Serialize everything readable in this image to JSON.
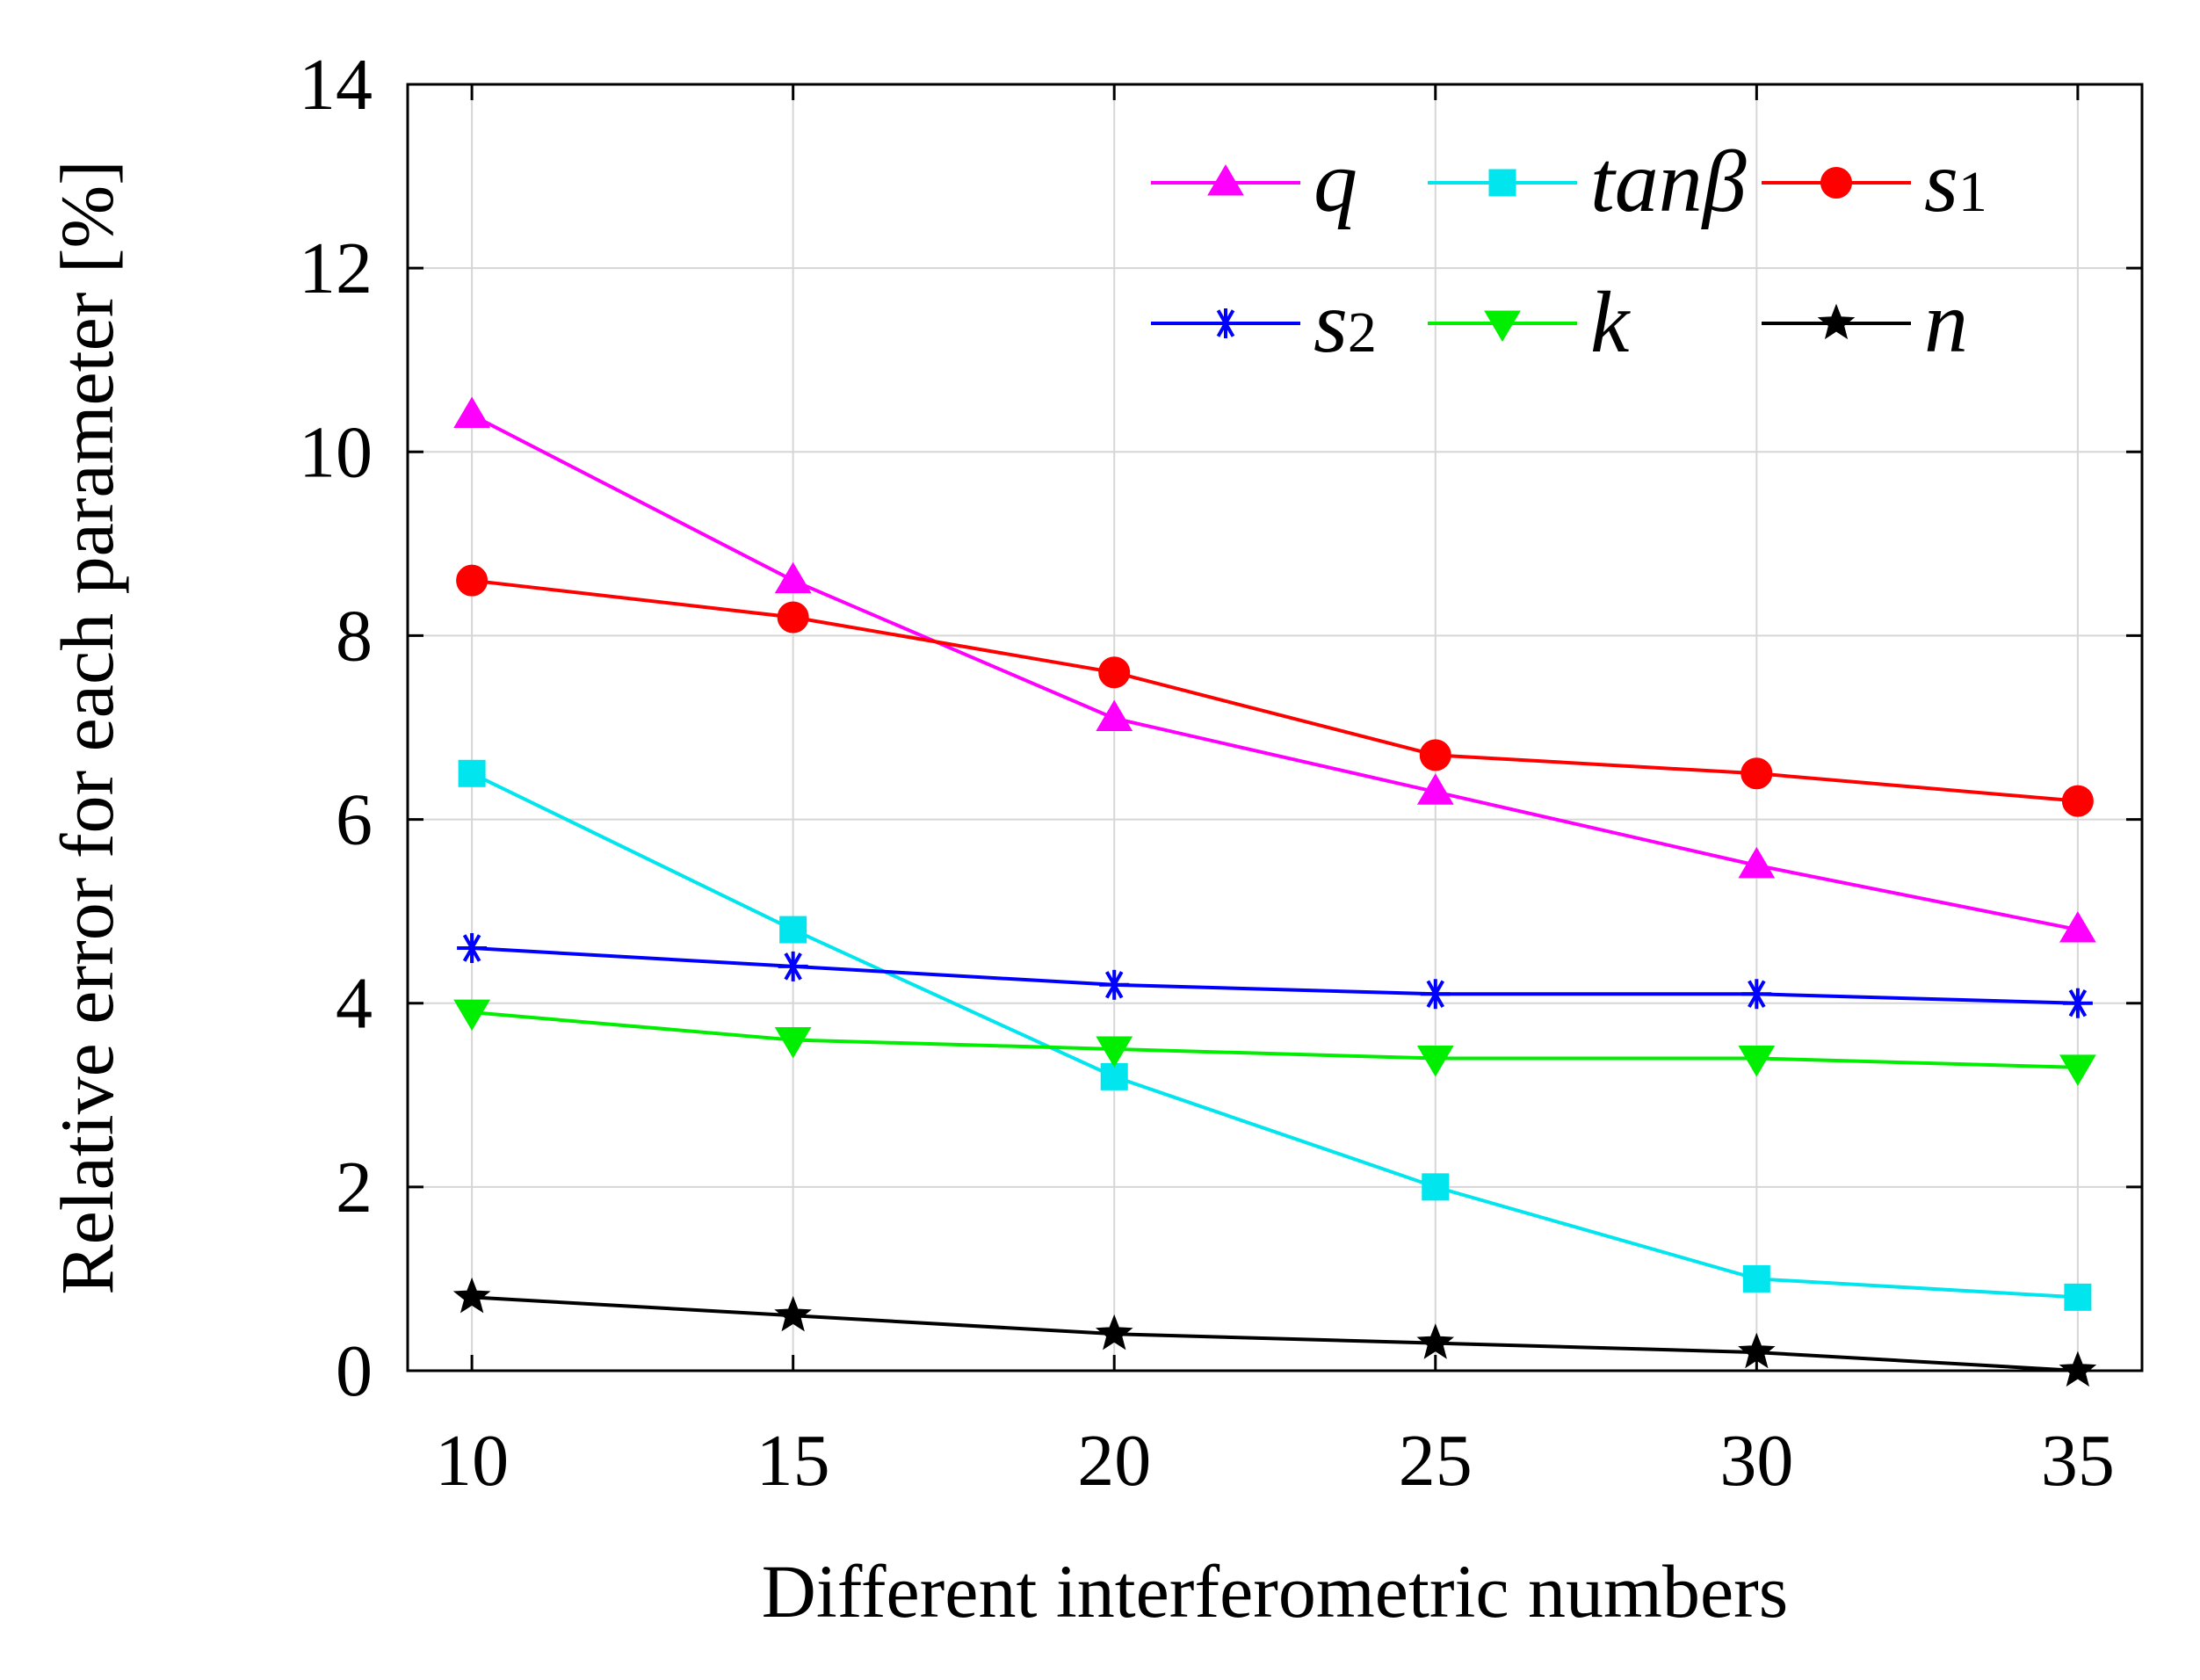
{
  "chart_data": {
    "type": "line",
    "title": "",
    "xlabel": "Different interferometric numbers",
    "ylabel": "Relative error for each parameter [%]",
    "x": [
      10,
      15,
      20,
      25,
      30,
      35
    ],
    "xticks": [
      "10",
      "15",
      "20",
      "25",
      "30",
      "35"
    ],
    "xlim": [
      9,
      36
    ],
    "yticks": [
      "0",
      "2",
      "4",
      "6",
      "8",
      "10",
      "12",
      "14"
    ],
    "ylim": [
      0,
      14
    ],
    "grid": true,
    "legend_position": "top-right",
    "series": [
      {
        "name": "q",
        "label_main": "q",
        "label_sub": "",
        "color": "#ff00ff",
        "marker": "triangle-up",
        "values": [
          10.4,
          8.6,
          7.1,
          6.3,
          5.5,
          4.8
        ]
      },
      {
        "name": "tanβ",
        "label_main": "tanβ",
        "label_sub": "",
        "color": "#00e5ee",
        "marker": "square",
        "values": [
          6.5,
          4.8,
          3.2,
          2.0,
          1.0,
          0.8
        ]
      },
      {
        "name": "s1",
        "label_main": "s",
        "label_sub": "1",
        "color": "#ff0000",
        "marker": "circle",
        "values": [
          8.6,
          8.2,
          7.6,
          6.7,
          6.5,
          6.2
        ]
      },
      {
        "name": "s2",
        "label_main": "s",
        "label_sub": "2",
        "color": "#0000ff",
        "marker": "asterisk",
        "values": [
          4.6,
          4.4,
          4.2,
          4.1,
          4.1,
          4.0
        ]
      },
      {
        "name": "k",
        "label_main": "k",
        "label_sub": "",
        "color": "#00ee00",
        "marker": "triangle-down",
        "values": [
          3.9,
          3.6,
          3.5,
          3.4,
          3.4,
          3.3
        ]
      },
      {
        "name": "n",
        "label_main": "n",
        "label_sub": "",
        "color": "#000000",
        "marker": "star",
        "values": [
          0.8,
          0.6,
          0.4,
          0.3,
          0.2,
          0.0
        ]
      }
    ]
  }
}
